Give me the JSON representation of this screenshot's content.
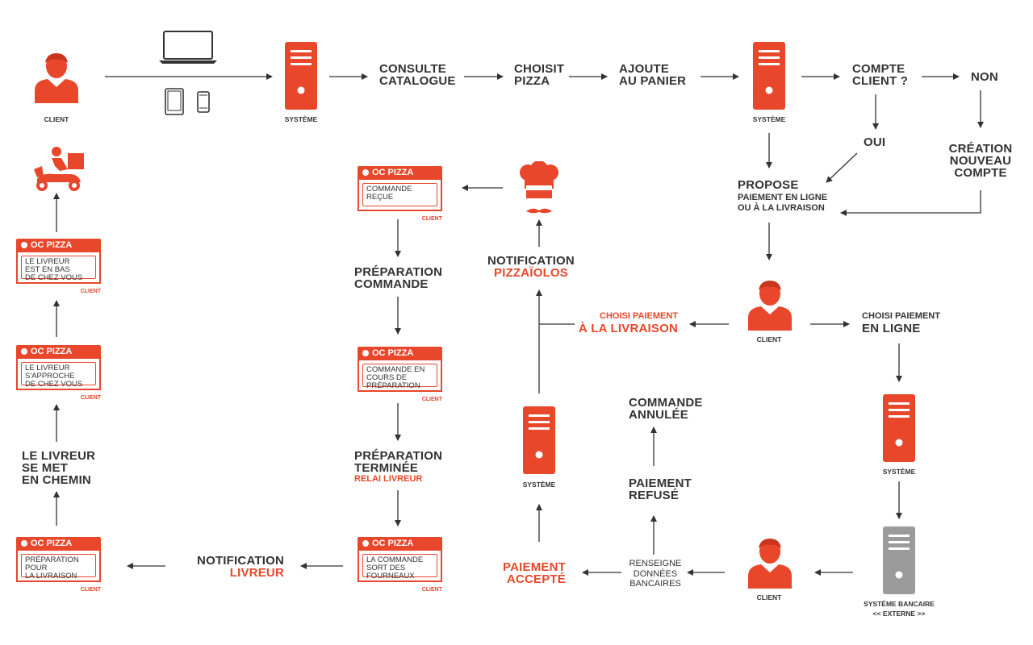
{
  "colors": {
    "accent": "#e8472b",
    "text": "#333333",
    "external": "#9b9b9b"
  },
  "labels": {
    "client": "CLIENT",
    "systeme": "SYSTÈME",
    "systeme_bancaire": "SYSTÈME BANCAIRE",
    "externe": "<< EXTERNE >>",
    "consulte_1": "CONSULTE",
    "consulte_2": "CATALOGUE",
    "choisit_1": "CHOISIT",
    "choisit_2": "PIZZA",
    "ajoute_1": "AJOUTE",
    "ajoute_2": "AU PANIER",
    "compte_1": "COMPTE",
    "compte_2": "CLIENT ?",
    "non": "NON",
    "oui": "OUI",
    "creation_1": "CRÉATION",
    "creation_2": "NOUVEAU",
    "creation_3": "COMPTE",
    "propose_1": "PROPOSE",
    "propose_2": "PAIEMENT EN LIGNE",
    "propose_3": "OU À LA LIVRAISON",
    "choisi_livraison_1": "CHOISI PAIEMENT",
    "choisi_livraison_2": "À LA LIVRAISON",
    "choisi_ligne_1": "CHOISI PAIEMENT",
    "choisi_ligne_2": "EN LIGNE",
    "notif_pizza_1": "NOTIFICATION",
    "notif_pizza_2": "PIZZAÏOLOS",
    "prep_commande_1": "PRÉPARATION",
    "prep_commande_2": "COMMANDE",
    "prep_terminee_1": "PRÉPARATION",
    "prep_terminee_2": "TERMINÉE",
    "prep_terminee_3": "RELAI LIVREUR",
    "commande_annulee_1": "COMMANDE",
    "commande_annulee_2": "ANNULÉE",
    "paiement_refuse_1": "PAIEMENT",
    "paiement_refuse_2": "REFUSÉ",
    "renseigne_1": "RENSEIGNE",
    "renseigne_2": "DONNÉES",
    "renseigne_3": "BANCAIRES",
    "paiement_accepte_1": "PAIEMENT",
    "paiement_accepte_2": "ACCEPTÉ",
    "notif_livreur_1": "NOTIFICATION",
    "notif_livreur_2": "LIVREUR",
    "livreur_chemin_1": "LE LIVREUR",
    "livreur_chemin_2": "SE MET",
    "livreur_chemin_3": "EN CHEMIN"
  },
  "cards": {
    "brand": "OC PIZZA",
    "tag": "CLIENT",
    "commande_recue": [
      "COMMANDE",
      "REÇUE"
    ],
    "en_cours": [
      "COMMANDE EN",
      "COURS DE",
      "PRÉPARATION"
    ],
    "sort_fourneaux": [
      "LA COMMANDE",
      "SORT DES",
      "FOURNEAUX"
    ],
    "prep_livraison": [
      "PRÉPARATION",
      "POUR",
      "LA LIVRAISON"
    ],
    "livreur_approche": [
      "LE LIVREUR",
      "S'APPROCHE",
      "DE CHEZ VOUS"
    ],
    "livreur_en_bas": [
      "LE LIVREUR",
      "EST EN BAS",
      "DE CHEZ VOUS"
    ]
  }
}
